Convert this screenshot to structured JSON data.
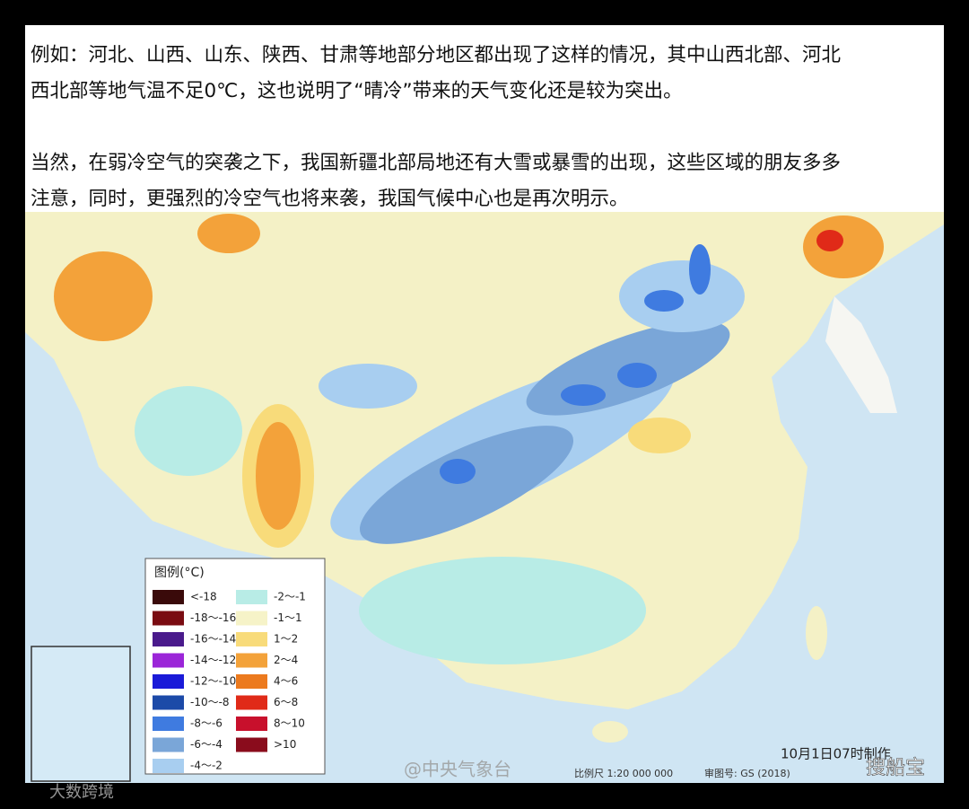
{
  "article": {
    "paragraphs": [
      [
        "例如：河北、山西、山东、陕西、甘肃等地部分地区都出现了这样的情况，其中山西北部、河北",
        "西北部等地气温不足0℃，这也说明了“晴冷”带来的天气变化还是较为突出。"
      ],
      [
        "当然，在弱冷空气的突袭之下，我国新疆北部局地还有大雪或暴雪的出现，这些区域的朋友多多",
        "注意，同时，更强烈的冷空气也将来袭，我国气候中心也是再次明示。"
      ]
    ]
  },
  "map": {
    "legend": {
      "title": "图例(°C)",
      "items": [
        {
          "label": "<-18",
          "color": "#3a0a0a"
        },
        {
          "label": "-18～-16",
          "color": "#7a0c12"
        },
        {
          "label": "-16～-14",
          "color": "#4a1a8c"
        },
        {
          "label": "-14～-12",
          "color": "#9b25d8"
        },
        {
          "label": "-12～-10",
          "color": "#1a1ad8"
        },
        {
          "label": "-10～-8",
          "color": "#1c4aa8"
        },
        {
          "label": "-8～-6",
          "color": "#3f7be0"
        },
        {
          "label": "-6～-4",
          "color": "#7aa6d8"
        },
        {
          "label": "-4～-2",
          "color": "#a8cef0"
        },
        {
          "label": "-2～-1",
          "color": "#b8ece6"
        },
        {
          "label": "-1～1",
          "color": "#f6f3c8"
        },
        {
          "label": "1～2",
          "color": "#f8db7a"
        },
        {
          "label": "2～4",
          "color": "#f3a23a"
        },
        {
          "label": "4～6",
          "color": "#ec7a1e"
        },
        {
          "label": "6～8",
          "color": "#e02a18"
        },
        {
          "label": "8～10",
          "color": "#c8102c"
        },
        {
          "label": ">10",
          "color": "#8a0c1c"
        }
      ]
    },
    "date": "10月1日07时制作",
    "source": "@中央气象台",
    "scale": "比例尺 1:20 000 000",
    "approval": "审图号: GS (2018)"
  },
  "watermarks": {
    "left": "大数跨境",
    "right": "搜船宝"
  }
}
